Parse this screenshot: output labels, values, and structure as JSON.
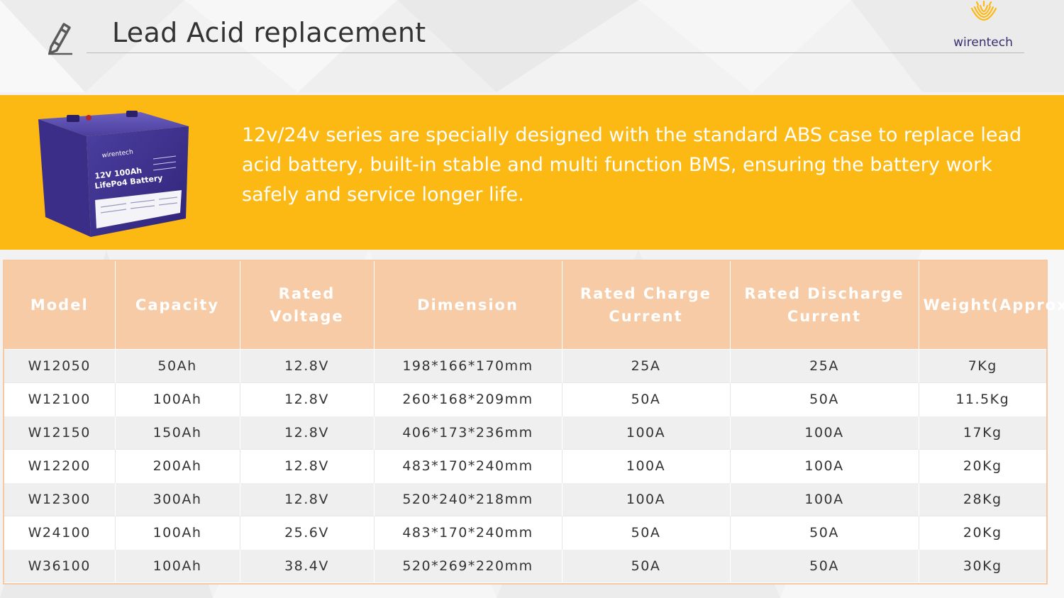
{
  "header": {
    "title": "Lead Acid replacement",
    "icon": "pencil-icon",
    "logo_text": "wirentech",
    "logo_color": "#3b2d6e",
    "logo_mark_color": "#fdb913"
  },
  "banner": {
    "background_color": "#fdb913",
    "text": "12v/24v series are specially designed with the standard ABS case to replace lead acid battery, built-in stable and multi function BMS, ensuring the battery work safely and service longer life.",
    "battery_image": {
      "brand": "wirentech",
      "label_line1": "12V 100Ah",
      "label_line2": "LifePo4 Battery"
    }
  },
  "table": {
    "header_color": "#f6cba6",
    "columns": [
      "Model",
      "Capacity",
      "Rated Voltage",
      "Dimension",
      "Rated Charge Current",
      "Rated Discharge Current",
      "Weight(Approx.)"
    ],
    "rows": [
      [
        "W12050",
        "50Ah",
        "12.8V",
        "198*166*170mm",
        "25A",
        "25A",
        "7Kg"
      ],
      [
        "W12100",
        "100Ah",
        "12.8V",
        "260*168*209mm",
        "50A",
        "50A",
        "11.5Kg"
      ],
      [
        "W12150",
        "150Ah",
        "12.8V",
        "406*173*236mm",
        "100A",
        "100A",
        "17Kg"
      ],
      [
        "W12200",
        "200Ah",
        "12.8V",
        "483*170*240mm",
        "100A",
        "100A",
        "20Kg"
      ],
      [
        "W12300",
        "300Ah",
        "12.8V",
        "520*240*218mm",
        "100A",
        "100A",
        "28Kg"
      ],
      [
        "W24100",
        "100Ah",
        "25.6V",
        "483*170*240mm",
        "50A",
        "50A",
        "20Kg"
      ],
      [
        "W36100",
        "100Ah",
        "38.4V",
        "520*269*220mm",
        "50A",
        "50A",
        "30Kg"
      ]
    ]
  }
}
